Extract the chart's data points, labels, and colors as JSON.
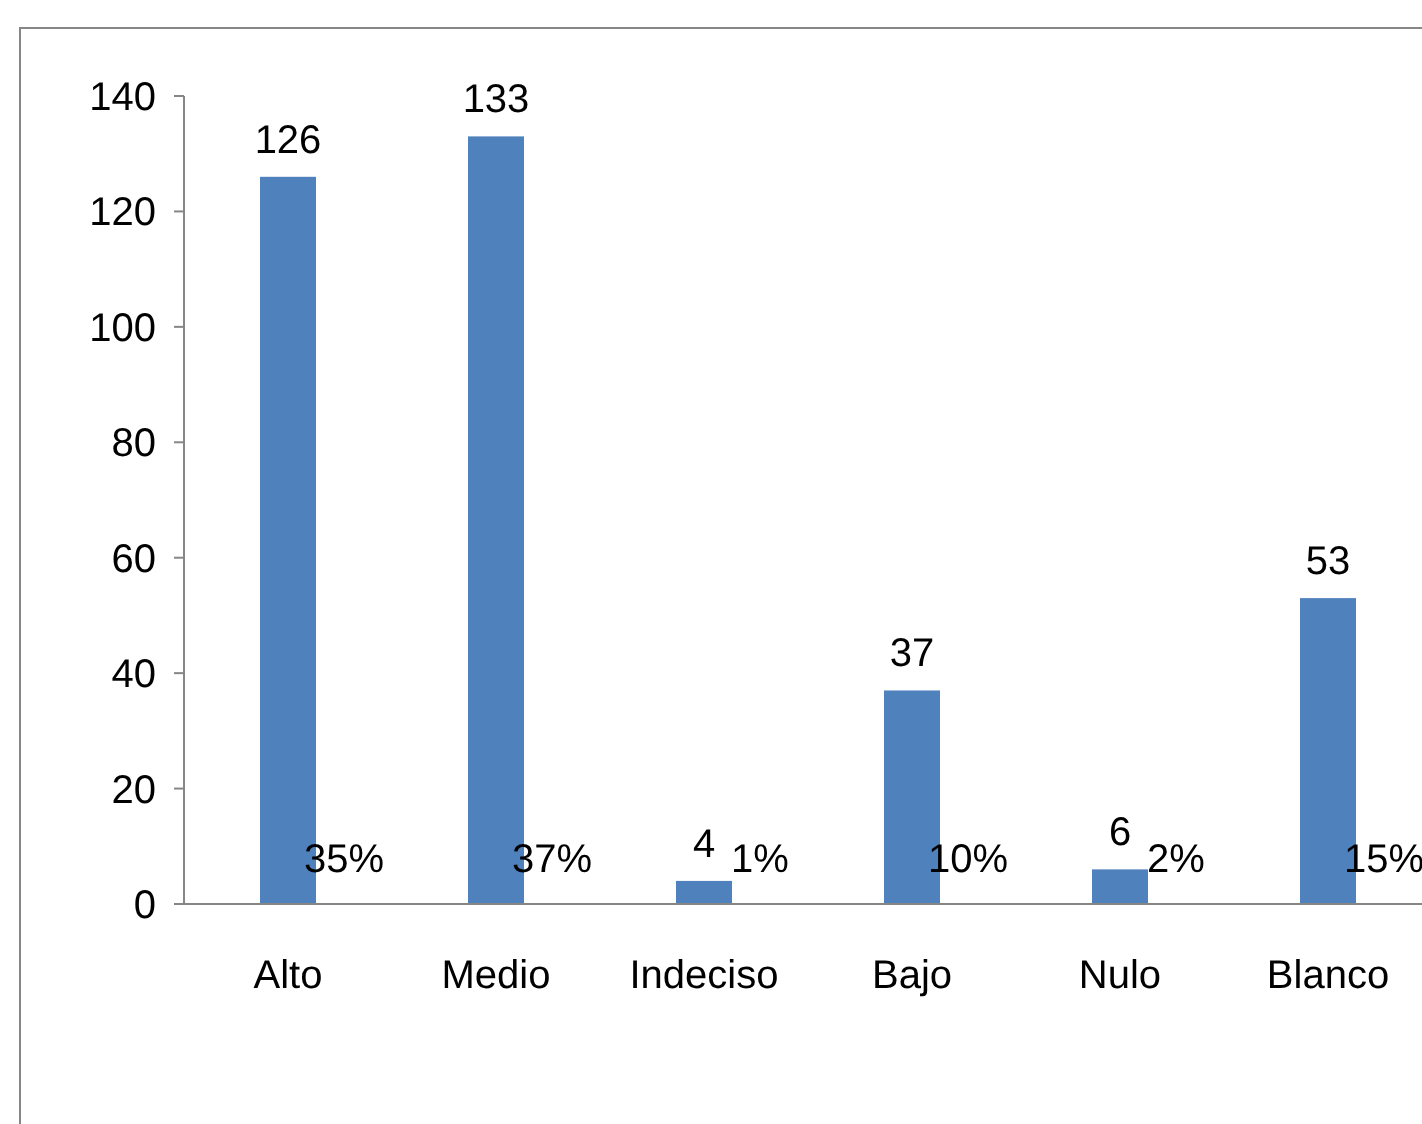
{
  "chart_data": {
    "type": "bar",
    "categories": [
      "Alto",
      "Medio",
      "Indeciso",
      "Bajo",
      "Nulo",
      "Blanco"
    ],
    "values": [
      126,
      133,
      4,
      37,
      6,
      53
    ],
    "color": "#4f81bd",
    "data_labels": true,
    "ylim": [
      0,
      140
    ],
    "yticks": [
      0,
      20,
      40,
      60,
      80,
      100,
      120,
      140
    ],
    "grid": false,
    "annotations": [
      {
        "text": "35%",
        "x": "Alto",
        "y": 0
      },
      {
        "text": "37%",
        "x": "Medio",
        "y": 0
      },
      {
        "text": "1%",
        "x": "Indeciso",
        "y": 0
      },
      {
        "text": "10%",
        "x": "Bajo",
        "y": 0
      },
      {
        "text": "2%",
        "x": "Nulo",
        "y": 0
      },
      {
        "text": "15%",
        "x": "Blanco",
        "y": 0
      }
    ]
  }
}
